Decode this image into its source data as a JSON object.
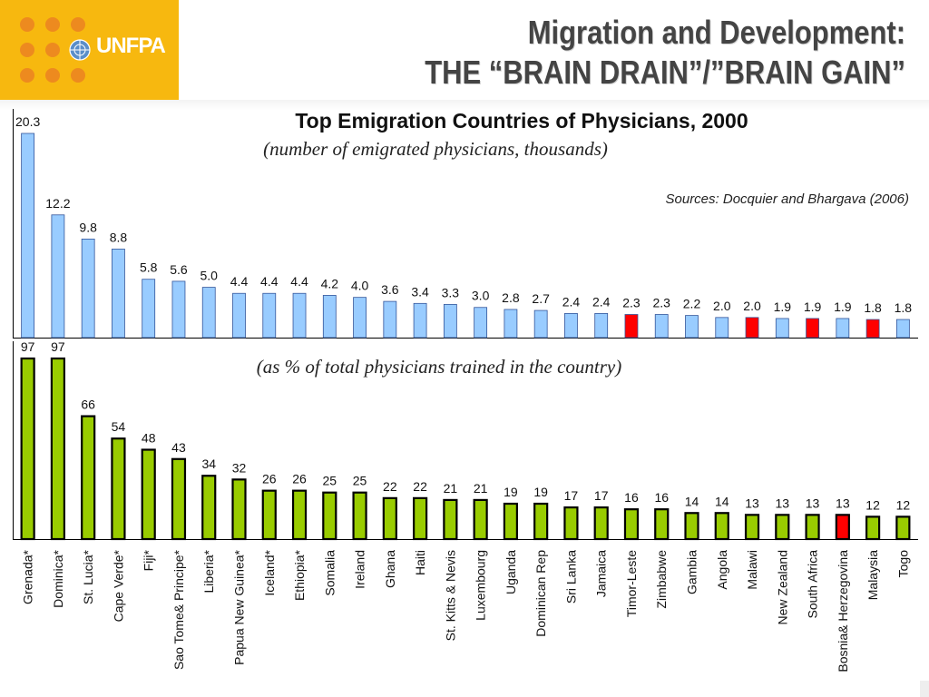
{
  "brand": {
    "logo_text": "UNFPA",
    "logo_icon": "un-emblem-icon",
    "color_brand": "#f7b80f"
  },
  "header": {
    "title_line1": "Migration and Development:",
    "title_line2": "THE “BRAIN DRAIN”/”BRAIN GAIN”"
  },
  "chart": {
    "title": "Top Emigration Countries of Physicians, 2000",
    "subtitle_top": "(number of emigrated physicians, thousands)",
    "subtitle_bottom": "(as % of total physicians trained in the country)",
    "source": "Sources: Docquier and Bhargava (2006)"
  },
  "chart_data": [
    {
      "type": "bar",
      "series": [
        {
          "values": [
            20.3,
            12.2,
            9.8,
            8.8,
            5.8,
            5.6,
            5.0,
            4.4,
            4.4,
            4.4,
            4.2,
            4.0,
            3.6,
            3.4,
            3.3,
            3.0,
            2.8,
            2.7,
            2.4,
            2.4,
            2.3,
            2.3,
            2.2,
            2.0,
            2.0,
            1.9,
            1.9,
            1.9,
            1.8,
            1.8
          ]
        }
      ],
      "labels": [
        "20.3",
        "12.2",
        "9.8",
        "8.8",
        "5.8",
        "5.6",
        "5.0",
        "4.4",
        "4.4",
        "4.4",
        "4.2",
        "4.0",
        "3.6",
        "3.4",
        "3.3",
        "3.0",
        "2.8",
        "2.7",
        "2.4",
        "2.4",
        "2.3",
        "2.3",
        "2.2",
        "2.0",
        "2.0",
        "1.9",
        "1.9",
        "1.9",
        "1.8",
        "1.8"
      ],
      "highlight_indices": [
        20,
        24,
        26,
        28
      ],
      "color": "#99ccff",
      "highlight_color": "#ff0000",
      "ylim": [
        0,
        20.3
      ]
    },
    {
      "type": "bar",
      "categories": [
        "Grenada*",
        "Dominica*",
        "St. Lucia*",
        "Cape Verde*",
        "Fiji*",
        "Sao Tome& Principe*",
        "Liberia*",
        "Papua New Guinea*",
        "Iceland*",
        "Ethiopia*",
        "Somalia",
        "Ireland",
        "Ghana",
        "Haiti",
        "St. Kitts & Nevis",
        "Luxembourg",
        "Uganda",
        "Dominican Rep",
        "Sri Lanka",
        "Jamaica",
        "Timor-Leste",
        "Zimbabwe",
        "Gambia",
        "Angola",
        "Malawi",
        "New Zealand",
        "South Africa",
        "Bosnia& Herzegovina",
        "Malaysia",
        "Togo"
      ],
      "series": [
        {
          "values": [
            97,
            97,
            66,
            54,
            48,
            43,
            34,
            32,
            26,
            26,
            25,
            25,
            22,
            22,
            21,
            21,
            19,
            19,
            17,
            17,
            16,
            16,
            14,
            14,
            13,
            13,
            13,
            13,
            12,
            12
          ]
        }
      ],
      "labels": [
        "97",
        "97",
        "66",
        "54",
        "48",
        "43",
        "34",
        "32",
        "26",
        "26",
        "25",
        "25",
        "22",
        "22",
        "21",
        "21",
        "19",
        "19",
        "17",
        "17",
        "16",
        "16",
        "14",
        "14",
        "13",
        "13",
        "13",
        "13",
        "12",
        "12"
      ],
      "highlight_indices": [
        27
      ],
      "color": "#99cc00",
      "highlight_color": "#ff0000",
      "ylim": [
        0,
        97
      ]
    }
  ]
}
